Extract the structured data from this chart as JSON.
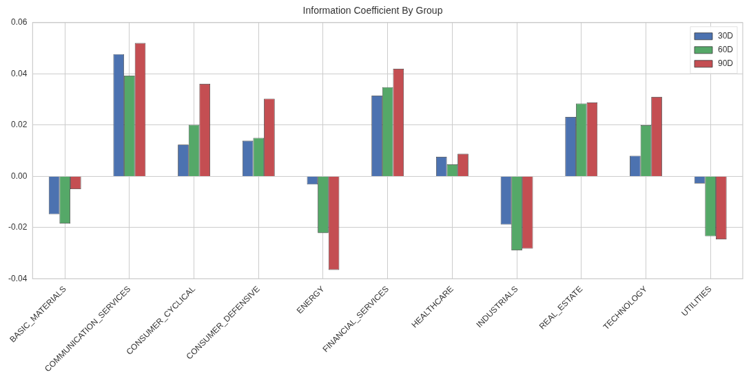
{
  "chart_data": {
    "type": "bar",
    "title": "Information Coefficient By Group",
    "categories": [
      "BASIC_MATERIALS",
      "COMMUNICATION_SERVICES",
      "CONSUMER_CYCLICAL",
      "CONSUMER_DEFENSIVE",
      "ENERGY",
      "FINANCIAL_SERVICES",
      "HEALTHCARE",
      "INDUSTRIALS",
      "REAL_ESTATE",
      "TECHNOLOGY",
      "UTILITIES"
    ],
    "series": [
      {
        "name": "30D",
        "color": "#4c72b0",
        "values": [
          -0.0148,
          0.0477,
          0.0124,
          0.0139,
          -0.0032,
          0.0315,
          0.0076,
          -0.0188,
          0.0232,
          0.008,
          -0.0028
        ]
      },
      {
        "name": "60D",
        "color": "#55a868",
        "values": [
          -0.0184,
          0.0393,
          0.0201,
          0.015,
          -0.0221,
          0.0348,
          0.0047,
          -0.0289,
          0.0284,
          0.02,
          -0.0234
        ]
      },
      {
        "name": "90D",
        "color": "#c44e52",
        "values": [
          -0.005,
          0.052,
          0.0361,
          0.0303,
          -0.0365,
          0.042,
          0.0088,
          -0.0282,
          0.0288,
          0.031,
          -0.0246
        ]
      }
    ],
    "ylim": [
      -0.04,
      0.06
    ],
    "yticks": [
      {
        "value": -0.04,
        "label": "-0.04"
      },
      {
        "value": -0.02,
        "label": "-0.02"
      },
      {
        "value": 0,
        "label": "0.00"
      },
      {
        "value": 0.02,
        "label": "0.02"
      },
      {
        "value": 0.04,
        "label": "0.04"
      },
      {
        "value": 0.06,
        "label": "0.06"
      }
    ],
    "grid": true,
    "legend": "top right"
  }
}
